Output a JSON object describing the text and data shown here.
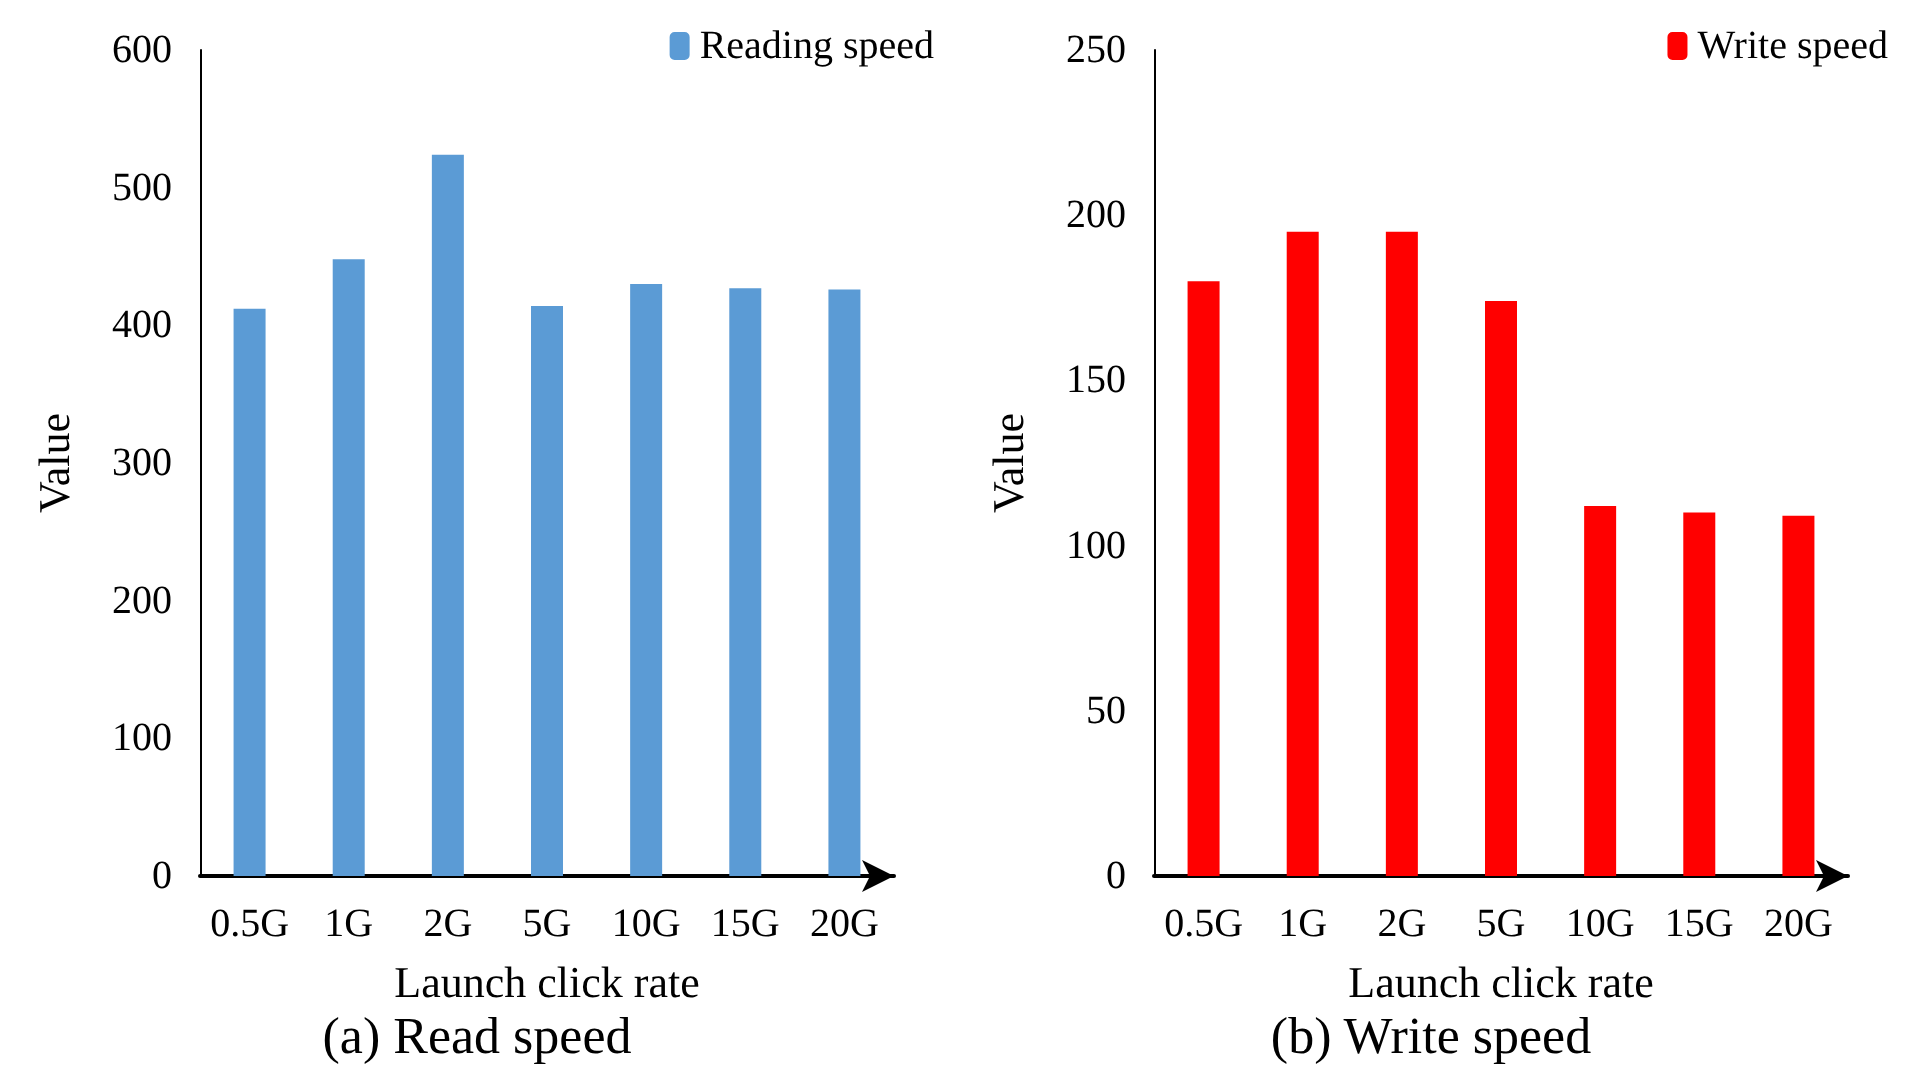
{
  "chart_data": [
    {
      "type": "bar",
      "xlabel": "Launch click rate",
      "ylabel": "Value",
      "categories": [
        "0.5G",
        "1G",
        "2G",
        "5G",
        "10G",
        "15G",
        "20G"
      ],
      "series": [
        {
          "name": "Reading speed",
          "color": "#5b9bd5",
          "values": [
            412,
            448,
            524,
            414,
            430,
            427,
            426
          ]
        }
      ],
      "ylim": [
        0,
        600
      ],
      "yticks": [
        0,
        100,
        200,
        300,
        400,
        500,
        600
      ],
      "grid": false,
      "legend": "top right",
      "annotations": [
        "(a) Read speed"
      ]
    },
    {
      "type": "bar",
      "xlabel": "Launch click rate",
      "ylabel": "Value",
      "categories": [
        "0.5G",
        "1G",
        "2G",
        "5G",
        "10G",
        "15G",
        "20G"
      ],
      "series": [
        {
          "name": "Write speed",
          "color": "#ff0000",
          "values": [
            180,
            195,
            195,
            174,
            112,
            110,
            109
          ]
        }
      ],
      "ylim": [
        0,
        250
      ],
      "yticks": [
        0,
        50,
        100,
        150,
        200,
        250
      ],
      "grid": false,
      "legend": "top right",
      "annotations": [
        "(b) Write speed"
      ]
    }
  ]
}
